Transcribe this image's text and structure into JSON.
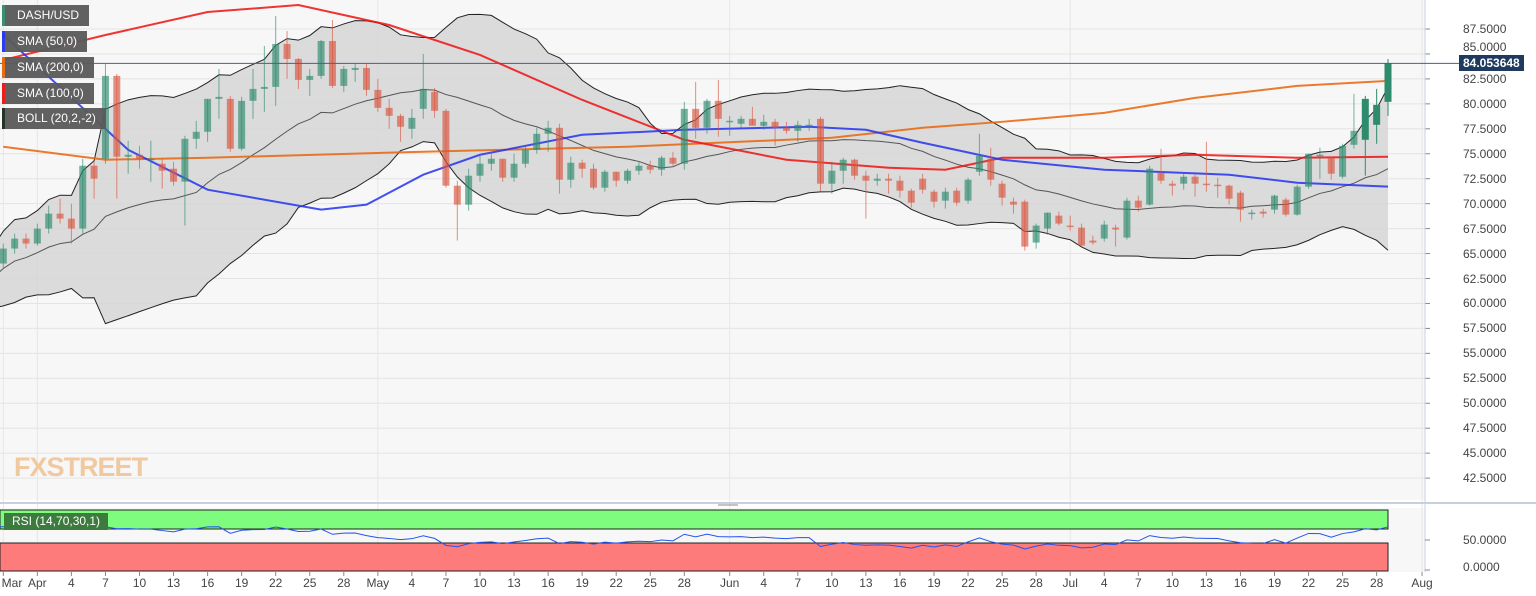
{
  "legend": {
    "symbol": "DASH/USD",
    "sma50": "SMA (50,0)",
    "sma200": "SMA (200,0)",
    "sma100": "SMA (100,0)",
    "boll": "BOLL (20,2,-2)",
    "rsi": "RSI (14,70,30,1)"
  },
  "watermark": "FXSTREET",
  "colors": {
    "up": "#2e8b6e",
    "down": "#d9553f",
    "sma50": "#2233ee",
    "sma100": "#ee1111",
    "sma200": "#e8650a",
    "boll": "#222222",
    "band_fill": "#d6d6d6",
    "rsi_line": "#2255ee",
    "rsi_over": "#7dfc7d",
    "rsi_under": "#fd7b7b",
    "price_tag": "#1f3a5f"
  },
  "chart_data": {
    "type": "candlestick",
    "last_date": "07-29",
    "current_price": "84.053648",
    "y_ticks": [
      "87.5000",
      "85.0000",
      "82.5000",
      "80.0000",
      "77.5000",
      "75.0000",
      "72.5000",
      "70.0000",
      "67.5000",
      "65.0000",
      "62.5000",
      "60.0000",
      "57.5000",
      "55.0000",
      "52.5000",
      "50.0000",
      "47.5000",
      "45.0000",
      "42.5000"
    ],
    "ylim": [
      41.5,
      90.4
    ],
    "rsi_ticks": [
      "50.0000",
      "0.0000"
    ],
    "x_ticks": [
      {
        "label": "Mar",
        "date": "03-29"
      },
      {
        "label": "Apr",
        "date": "04-01"
      },
      {
        "label": "4",
        "date": "04-04"
      },
      {
        "label": "7",
        "date": "04-07"
      },
      {
        "label": "10",
        "date": "04-10"
      },
      {
        "label": "13",
        "date": "04-13"
      },
      {
        "label": "16",
        "date": "04-16"
      },
      {
        "label": "19",
        "date": "04-19"
      },
      {
        "label": "22",
        "date": "04-22"
      },
      {
        "label": "25",
        "date": "04-25"
      },
      {
        "label": "28",
        "date": "04-28"
      },
      {
        "label": "May",
        "date": "05-01"
      },
      {
        "label": "4",
        "date": "05-04"
      },
      {
        "label": "7",
        "date": "05-07"
      },
      {
        "label": "10",
        "date": "05-10"
      },
      {
        "label": "13",
        "date": "05-13"
      },
      {
        "label": "16",
        "date": "05-16"
      },
      {
        "label": "19",
        "date": "05-19"
      },
      {
        "label": "22",
        "date": "05-22"
      },
      {
        "label": "25",
        "date": "05-25"
      },
      {
        "label": "28",
        "date": "05-28"
      },
      {
        "label": "Jun",
        "date": "06-01"
      },
      {
        "label": "4",
        "date": "06-04"
      },
      {
        "label": "7",
        "date": "06-07"
      },
      {
        "label": "10",
        "date": "06-10"
      },
      {
        "label": "13",
        "date": "06-13"
      },
      {
        "label": "16",
        "date": "06-16"
      },
      {
        "label": "19",
        "date": "06-19"
      },
      {
        "label": "22",
        "date": "06-22"
      },
      {
        "label": "25",
        "date": "06-25"
      },
      {
        "label": "28",
        "date": "06-28"
      },
      {
        "label": "Jul",
        "date": "07-01"
      },
      {
        "label": "4",
        "date": "07-04"
      },
      {
        "label": "7",
        "date": "07-07"
      },
      {
        "label": "10",
        "date": "07-10"
      },
      {
        "label": "13",
        "date": "07-13"
      },
      {
        "label": "16",
        "date": "07-16"
      },
      {
        "label": "19",
        "date": "07-19"
      },
      {
        "label": "22",
        "date": "07-22"
      },
      {
        "label": "25",
        "date": "07-25"
      },
      {
        "label": "28",
        "date": "07-28"
      },
      {
        "label": "Aug",
        "date": "08-01"
      }
    ],
    "ohlc": [
      [
        65,
        66,
        60.5,
        61
      ],
      [
        61,
        64.5,
        60.5,
        64
      ],
      [
        64,
        66,
        63.5,
        65.5
      ],
      [
        65.5,
        67,
        65,
        66.5
      ],
      [
        66.5,
        67,
        65.5,
        66
      ],
      [
        66,
        68,
        65.8,
        67.5
      ],
      [
        67.5,
        69.8,
        67,
        69
      ],
      [
        69,
        70.5,
        68,
        68.5
      ],
      [
        68.5,
        70,
        66,
        67.5
      ],
      [
        67.5,
        74.5,
        67,
        73.8
      ],
      [
        73.8,
        74.2,
        70.5,
        72.5
      ],
      [
        74.5,
        84,
        74,
        82.8
      ],
      [
        82.8,
        83,
        70.5,
        74.7
      ],
      [
        74.7,
        76.3,
        73,
        74.9
      ],
      [
        74.9,
        75.8,
        73.5,
        74.5
      ],
      [
        74.5,
        76.3,
        72.2,
        74.5
      ],
      [
        74,
        74.5,
        71.5,
        73.3
      ],
      [
        73.5,
        74.2,
        71.8,
        72.2
      ],
      [
        72.2,
        76.8,
        67.8,
        76.5
      ],
      [
        76.5,
        78.3,
        75.5,
        77.2
      ],
      [
        77.2,
        80.5,
        76.2,
        80.5
      ],
      [
        80.5,
        83.5,
        78.5,
        80.7
      ],
      [
        80.5,
        80.8,
        75.2,
        75.5
      ],
      [
        75.5,
        80.7,
        75.3,
        80.3
      ],
      [
        80.3,
        83.5,
        78.5,
        81.5
      ],
      [
        81.5,
        85.8,
        79.2,
        81.7
      ],
      [
        81.7,
        88.8,
        79.8,
        86.0
      ],
      [
        86,
        87.3,
        82.5,
        84.5
      ],
      [
        84.5,
        84.6,
        81.5,
        82.4
      ],
      [
        82.4,
        83.5,
        80.8,
        82.8
      ],
      [
        82.8,
        86.4,
        82.5,
        86.3
      ],
      [
        86.3,
        88.4,
        81.6,
        81.8
      ],
      [
        81.8,
        83.8,
        81.2,
        83.5
      ],
      [
        83.4,
        84,
        82.2,
        83.6
      ],
      [
        83.6,
        84,
        80.8,
        81.4
      ],
      [
        81.4,
        82.5,
        79.2,
        79.6
      ],
      [
        79.6,
        80.5,
        77.5,
        78.8
      ],
      [
        78.8,
        79,
        76.2,
        77.7
      ],
      [
        77.5,
        79.5,
        76.5,
        78.6
      ],
      [
        79.5,
        85,
        78.5,
        81.5
      ],
      [
        81.2,
        81.6,
        78.6,
        79.3
      ],
      [
        79.3,
        79.5,
        71.6,
        71.8
      ],
      [
        71.8,
        72.3,
        66.3,
        69.9
      ],
      [
        69.9,
        73.5,
        69.3,
        72.8
      ],
      [
        72.8,
        74.8,
        72.2,
        74.0
      ],
      [
        74.0,
        75.0,
        73.3,
        74.5
      ],
      [
        74.5,
        74.5,
        72.2,
        72.6
      ],
      [
        72.6,
        75.0,
        72.2,
        74.0
      ],
      [
        74.0,
        75.8,
        73.6,
        75.4
      ],
      [
        75.4,
        77.6,
        75.0,
        77.0
      ],
      [
        77.0,
        78.3,
        75.2,
        77.6
      ],
      [
        77.6,
        78.0,
        71.0,
        72.4
      ],
      [
        72.4,
        74.7,
        71.6,
        74.1
      ],
      [
        74.1,
        74.4,
        72.6,
        73.5
      ],
      [
        73.5,
        74.0,
        71.4,
        71.6
      ],
      [
        71.6,
        73.4,
        71.2,
        73.2
      ],
      [
        73.2,
        73.2,
        71.7,
        72.3
      ],
      [
        72.3,
        73.5,
        72.0,
        73.3
      ],
      [
        73.3,
        74.2,
        72.9,
        73.8
      ],
      [
        73.8,
        74.3,
        73.0,
        73.4
      ],
      [
        73.4,
        74.8,
        72.8,
        74.6
      ],
      [
        74.6,
        75.2,
        73.8,
        74.0
      ],
      [
        74.0,
        80.2,
        73.4,
        79.5
      ],
      [
        79.5,
        82.2,
        76.5,
        77.6
      ],
      [
        77.6,
        80.5,
        77.0,
        80.3
      ],
      [
        80.3,
        82.4,
        76.7,
        78.5
      ],
      [
        78.3,
        78.8,
        76.8,
        78.3
      ],
      [
        78.0,
        78.8,
        77.6,
        78.5
      ],
      [
        78.5,
        79.7,
        77.9,
        77.8
      ],
      [
        77.8,
        78.9,
        77.4,
        78.2
      ],
      [
        78.2,
        78.5,
        75.8,
        77.6
      ],
      [
        77.6,
        78.2,
        77.0,
        77.3
      ],
      [
        77.3,
        78.3,
        76.2,
        77.9
      ],
      [
        77.9,
        78.5,
        77.3,
        77.9
      ],
      [
        78.5,
        78.7,
        71.2,
        72.0
      ],
      [
        72.0,
        74.2,
        71.0,
        73.3
      ],
      [
        73.3,
        74.6,
        72.0,
        74.4
      ],
      [
        74.4,
        74.5,
        72.4,
        72.8
      ],
      [
        72.8,
        73.3,
        68.5,
        72.3
      ],
      [
        72.3,
        73.0,
        71.8,
        72.5
      ],
      [
        72.5,
        73.0,
        71.0,
        72.3
      ],
      [
        72.3,
        72.8,
        70.6,
        71.3
      ],
      [
        71.3,
        71.5,
        69.6,
        70.1
      ],
      [
        72.5,
        73.0,
        71.0,
        71.4
      ],
      [
        71.2,
        71.4,
        69.6,
        70.2
      ],
      [
        70.3,
        71.6,
        69.5,
        71.2
      ],
      [
        71.3,
        71.6,
        69.8,
        70.1
      ],
      [
        70.3,
        72.6,
        70.0,
        72.4
      ],
      [
        73.2,
        77.0,
        72.8,
        74.8
      ],
      [
        74.5,
        75.6,
        71.8,
        72.4
      ],
      [
        72.0,
        72.3,
        69.8,
        70.6
      ],
      [
        70.2,
        70.6,
        69.0,
        69.9
      ],
      [
        70.2,
        70.4,
        65.3,
        65.7
      ],
      [
        66.1,
        68.0,
        65.5,
        67.8
      ],
      [
        67.5,
        69.1,
        66.9,
        69.1
      ],
      [
        68.8,
        69.2,
        67.8,
        68.0
      ],
      [
        67.8,
        68.8,
        67.3,
        67.7
      ],
      [
        67.6,
        68.0,
        65.8,
        65.8
      ],
      [
        66.3,
        66.8,
        65.9,
        66.1
      ],
      [
        66.5,
        68.3,
        66.2,
        67.9
      ],
      [
        67.6,
        67.9,
        65.7,
        67.4
      ],
      [
        66.6,
        70.6,
        66.4,
        70.3
      ],
      [
        70.3,
        70.8,
        69.2,
        69.6
      ],
      [
        69.9,
        73.8,
        69.8,
        73.5
      ],
      [
        73.1,
        75.5,
        72.0,
        72.3
      ],
      [
        72.0,
        72.3,
        70.8,
        71.8
      ],
      [
        72.0,
        73.0,
        71.4,
        72.7
      ],
      [
        72.7,
        72.9,
        70.7,
        72.0
      ],
      [
        72.0,
        76.2,
        71.2,
        71.9
      ],
      [
        71.9,
        72.6,
        70.6,
        71.8
      ],
      [
        71.8,
        71.9,
        69.9,
        70.5
      ],
      [
        71.1,
        71.3,
        68.2,
        69.4
      ],
      [
        69.0,
        69.4,
        68.4,
        69.1
      ],
      [
        69.2,
        69.5,
        68.6,
        69.0
      ],
      [
        69.4,
        70.9,
        69.0,
        70.8
      ],
      [
        70.4,
        70.6,
        68.7,
        68.9
      ],
      [
        68.9,
        71.9,
        68.8,
        71.7
      ],
      [
        71.7,
        75.0,
        71.5,
        75.0
      ],
      [
        74.8,
        75.6,
        72.5,
        74.9
      ],
      [
        74.6,
        74.7,
        72.4,
        73.0
      ],
      [
        72.7,
        76.0,
        72.5,
        75.8
      ],
      [
        75.9,
        81.0,
        75.5,
        77.3
      ],
      [
        76.4,
        80.8,
        72.8,
        80.5
      ],
      [
        77.9,
        81.5,
        76.0,
        79.9
      ],
      [
        80.2,
        84.5,
        78.8,
        84.05
      ]
    ],
    "sma50": [
      [
        "03-29",
        86.9
      ],
      [
        "04-09",
        75.4
      ],
      [
        "04-16",
        71.4
      ],
      [
        "04-26",
        69.4
      ],
      [
        "04-30",
        69.9
      ],
      [
        "05-05",
        72.9
      ],
      [
        "05-10",
        74.9
      ],
      [
        "05-19",
        76.9
      ],
      [
        "05-28",
        77.4
      ],
      [
        "06-08",
        77.7
      ],
      [
        "06-13",
        77.4
      ],
      [
        "06-18",
        76.1
      ],
      [
        "06-25",
        74.4
      ],
      [
        "07-04",
        73.4
      ],
      [
        "07-15",
        72.9
      ],
      [
        "07-21",
        72.1
      ],
      [
        "07-29",
        71.7
      ]
    ],
    "sma100": [
      [
        "03-29",
        84.4
      ],
      [
        "04-07",
        86.9
      ],
      [
        "04-16",
        89.2
      ],
      [
        "04-24",
        89.9
      ],
      [
        "05-02",
        87.9
      ],
      [
        "05-10",
        84.9
      ],
      [
        "05-19",
        80.4
      ],
      [
        "05-28",
        76.4
      ],
      [
        "06-06",
        74.4
      ],
      [
        "06-15",
        73.6
      ],
      [
        "06-20",
        73.4
      ],
      [
        "06-25",
        74.6
      ],
      [
        "07-04",
        74.6
      ],
      [
        "07-12",
        74.9
      ],
      [
        "07-21",
        74.6
      ],
      [
        "07-29",
        74.7
      ]
    ],
    "sma200": [
      [
        "03-29",
        75.7
      ],
      [
        "04-07",
        74.4
      ],
      [
        "04-16",
        74.6
      ],
      [
        "05-05",
        75.2
      ],
      [
        "05-23",
        75.7
      ],
      [
        "06-10",
        76.6
      ],
      [
        "06-18",
        77.6
      ],
      [
        "06-25",
        78.2
      ],
      [
        "07-04",
        79.1
      ],
      [
        "07-12",
        80.6
      ],
      [
        "07-21",
        81.8
      ],
      [
        "07-29",
        82.3
      ]
    ]
  }
}
